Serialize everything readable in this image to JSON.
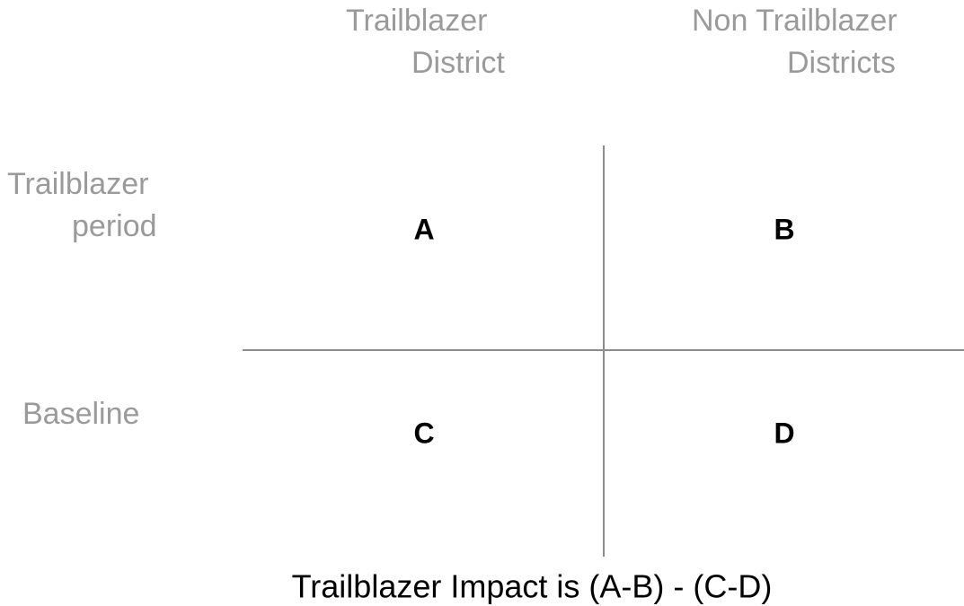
{
  "columns": [
    {
      "lines": [
        "Trailblazer",
        "District"
      ]
    },
    {
      "lines": [
        "Non Trailblazer",
        "Districts"
      ]
    }
  ],
  "rows": [
    {
      "lines": [
        "Trailblazer",
        "period"
      ]
    },
    {
      "lines": [
        "Baseline"
      ]
    }
  ],
  "cells": [
    [
      "A",
      "B"
    ],
    [
      "C",
      "D"
    ]
  ],
  "footer": "Trailblazer Impact is (A-B) - (C-D)"
}
